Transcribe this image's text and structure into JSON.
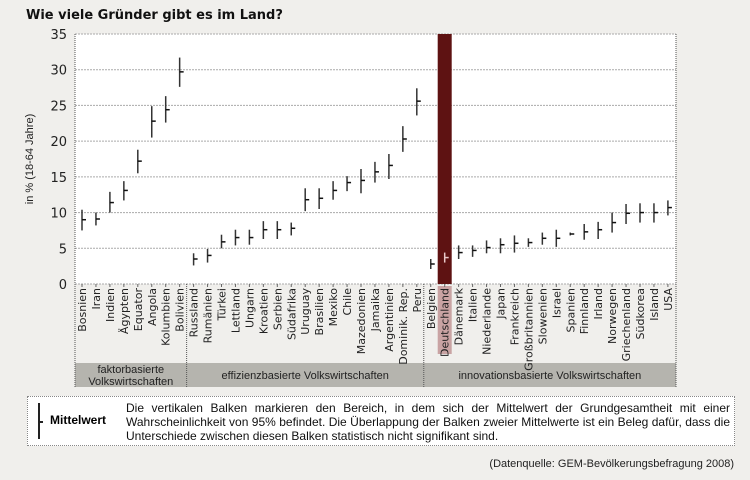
{
  "title": "Wie viele Gründer gibt es im Land?",
  "chart_data": {
    "type": "errorbar",
    "title": "Wie viele Gründer gibt es im Land?",
    "ylabel": "in % (18-64 Jahre)",
    "ylim": [
      0,
      35
    ],
    "yticks": [
      0,
      5,
      10,
      15,
      20,
      25,
      30,
      35
    ],
    "grid": true,
    "highlight": "Deutschland",
    "highlight_color": "#5e1212",
    "groups": [
      {
        "label": "faktorbasierte Volkswirtschaften",
        "count": 8
      },
      {
        "label": "effizienzbasierte Volkswirtschaften",
        "count": 17
      },
      {
        "label": "innovationsbasierte Volkswirtschaften",
        "count": 18
      }
    ],
    "categories": [
      "Bosnien",
      "Iran",
      "Indien",
      "Ägypten",
      "Equator",
      "Angola",
      "Kolumbien",
      "Bolivien",
      "Russland",
      "Rumänien",
      "Türkei",
      "Lettland",
      "Ungarn",
      "Kroatien",
      "Serbien",
      "Südafrika",
      "Uruguay",
      "Brasilien",
      "Mexiko",
      "Chile",
      "Mazedonien",
      "Jamaika",
      "Argentinien",
      "Dominik. Rep.",
      "Peru",
      "Belgien",
      "Deutschland",
      "Dänemark",
      "Italien",
      "Niederlande",
      "Japan",
      "Frankreich",
      "Großbritannien",
      "Slowenien",
      "Israel",
      "Spanien",
      "Finnland",
      "Irland",
      "Norwegen",
      "Griechenland",
      "Südkorea",
      "Island",
      "USA"
    ],
    "mean": [
      9.0,
      9.1,
      11.4,
      13.1,
      17.2,
      22.8,
      24.4,
      29.7,
      3.5,
      4.0,
      5.9,
      6.5,
      6.5,
      7.6,
      7.6,
      7.8,
      11.8,
      12.0,
      13.1,
      14.2,
      14.5,
      15.7,
      16.6,
      20.3,
      25.6,
      2.8,
      3.7,
      4.4,
      4.7,
      5.1,
      5.5,
      5.7,
      5.8,
      6.4,
      6.4,
      7.0,
      7.3,
      7.6,
      8.6,
      9.9,
      10.0,
      10.0,
      10.7
    ],
    "low": [
      7.5,
      8.2,
      10.0,
      11.7,
      15.5,
      20.5,
      22.6,
      27.6,
      2.6,
      3.0,
      5.0,
      5.4,
      5.5,
      6.3,
      6.3,
      6.8,
      10.2,
      10.5,
      11.8,
      13.0,
      12.7,
      14.2,
      14.7,
      18.5,
      23.6,
      2.1,
      3.0,
      3.5,
      3.8,
      4.3,
      4.3,
      4.4,
      5.2,
      5.5,
      5.2,
      6.8,
      6.2,
      6.3,
      7.2,
      8.4,
      8.6,
      8.6,
      9.6
    ],
    "high": [
      10.4,
      10.0,
      12.9,
      14.4,
      18.8,
      24.9,
      26.3,
      31.7,
      4.3,
      4.9,
      6.9,
      7.6,
      7.6,
      8.8,
      8.8,
      8.6,
      13.4,
      13.4,
      14.4,
      15.1,
      16.1,
      17.1,
      18.2,
      22.1,
      27.4,
      3.5,
      4.4,
      5.4,
      5.4,
      6.1,
      6.4,
      6.8,
      6.4,
      7.2,
      7.6,
      7.2,
      8.4,
      8.7,
      10.0,
      11.2,
      11.3,
      11.3,
      11.7
    ]
  },
  "legend": {
    "name": "Mittelwert",
    "text": "Die vertikalen Balken markieren den Bereich, in dem sich der Mittelwert der Grundgesamtheit mit einer Wahrscheinlichkeit von 95% befindet. Die Überlappung der Balken zweier Mittelwerte ist ein Beleg dafür, dass die Unterschiede zwischen diesen Balken statistisch nicht signifikant sind."
  },
  "source": "(Datenquelle: GEM-Bevölkerungsbefragung 2008)"
}
